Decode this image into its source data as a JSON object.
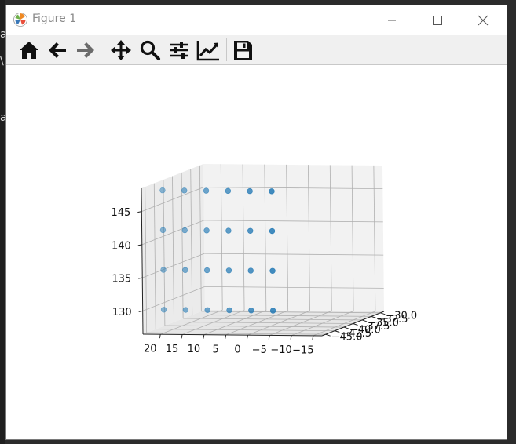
{
  "window": {
    "title": "Figure 1"
  },
  "background_glyphs": [
    "a",
    "\\",
    "a"
  ],
  "titlebar_buttons": [
    {
      "name": "minimize",
      "icon": "minimize-icon"
    },
    {
      "name": "maximize",
      "icon": "maximize-icon"
    },
    {
      "name": "close",
      "icon": "close-icon"
    }
  ],
  "toolbar": [
    {
      "name": "home",
      "icon": "home-icon"
    },
    {
      "name": "back",
      "icon": "back-arrow-icon"
    },
    {
      "name": "forward",
      "icon": "forward-arrow-icon"
    },
    {
      "name": "pan",
      "icon": "move-icon"
    },
    {
      "name": "zoom",
      "icon": "zoom-icon"
    },
    {
      "name": "configure-subplots",
      "icon": "sliders-icon"
    },
    {
      "name": "edit-axes",
      "icon": "line-chart-icon"
    },
    {
      "name": "save",
      "icon": "save-icon"
    }
  ],
  "chart_data": {
    "type": "scatter",
    "projection": "3d",
    "title": "",
    "xlabel": "",
    "ylabel": "",
    "zlabel": "",
    "x_ticks": [
      "20",
      "15",
      "10",
      "5",
      "0",
      "−5",
      "−10",
      "−15"
    ],
    "y_ticks": [
      "−30.0",
      "−32.5",
      "−35.0",
      "−37.5",
      "−40.0",
      "−42.5",
      "−45.0"
    ],
    "z_ticks": [
      "130",
      "135",
      "140",
      "145"
    ],
    "xlim": [
      -17,
      24
    ],
    "ylim": [
      -46,
      -29
    ],
    "zlim": [
      126.5,
      148.5
    ],
    "color": "#1f77b4",
    "points": [
      {
        "x": 20,
        "y": -45,
        "z": 130
      },
      {
        "x": 15,
        "y": -45,
        "z": 130
      },
      {
        "x": 10,
        "y": -45,
        "z": 130
      },
      {
        "x": 5,
        "y": -45,
        "z": 130
      },
      {
        "x": 0,
        "y": -45,
        "z": 130
      },
      {
        "x": -5,
        "y": -45,
        "z": 130
      },
      {
        "x": 20,
        "y": -45,
        "z": 136
      },
      {
        "x": 15,
        "y": -45,
        "z": 136
      },
      {
        "x": 10,
        "y": -45,
        "z": 136
      },
      {
        "x": 5,
        "y": -45,
        "z": 136
      },
      {
        "x": 0,
        "y": -45,
        "z": 136
      },
      {
        "x": -5,
        "y": -45,
        "z": 136
      },
      {
        "x": 20,
        "y": -45,
        "z": 142
      },
      {
        "x": 15,
        "y": -45,
        "z": 142
      },
      {
        "x": 10,
        "y": -45,
        "z": 142
      },
      {
        "x": 5,
        "y": -45,
        "z": 142
      },
      {
        "x": 0,
        "y": -45,
        "z": 142
      },
      {
        "x": -5,
        "y": -45,
        "z": 142
      },
      {
        "x": 20,
        "y": -45,
        "z": 148
      },
      {
        "x": 15,
        "y": -45,
        "z": 148
      },
      {
        "x": 10,
        "y": -45,
        "z": 148
      },
      {
        "x": 5,
        "y": -45,
        "z": 148
      },
      {
        "x": 0,
        "y": -45,
        "z": 148
      },
      {
        "x": -5,
        "y": -45,
        "z": 148
      }
    ]
  }
}
